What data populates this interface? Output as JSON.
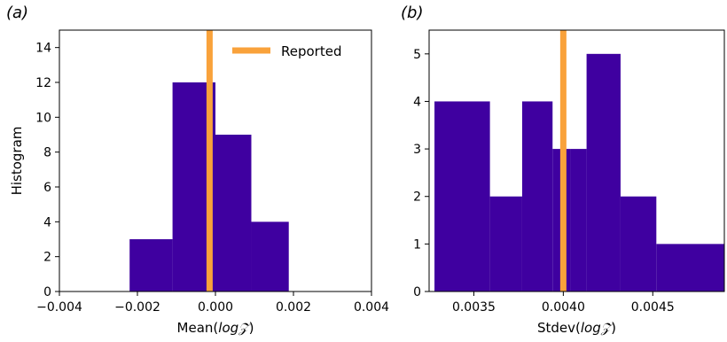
{
  "chart_data": [
    {
      "type": "histogram",
      "panel_label": "(a)",
      "xlabel": "Mean(logℤ)",
      "xlabel_main": "Mean(",
      "xlabel_math": "log𝒵",
      "xlabel_close": ")",
      "ylabel": "Histogram",
      "xlim": [
        -0.004,
        0.004
      ],
      "ylim": [
        0,
        15
      ],
      "xticks": [
        -0.004,
        -0.002,
        0.0,
        0.002,
        0.004
      ],
      "xtick_labels": [
        "−0.004",
        "−0.002",
        "0.000",
        "0.002",
        "0.004"
      ],
      "yticks": [
        0,
        2,
        4,
        6,
        8,
        10,
        12,
        14
      ],
      "ytick_labels": [
        "0",
        "2",
        "4",
        "6",
        "8",
        "10",
        "12",
        "14"
      ],
      "bins": [
        -0.0042,
        -0.0022,
        -0.0011,
        0.0,
        0.00092,
        0.00188
      ],
      "counts": [
        0,
        3,
        12,
        9,
        4
      ],
      "reported": -0.00015,
      "legend": {
        "label": "Reported",
        "placement": "top-right"
      },
      "bar_color": "#3f00a0",
      "reported_color": "#f9a23b"
    },
    {
      "type": "histogram",
      "panel_label": "(b)",
      "xlabel": "Stdev(logℤ)",
      "xlabel_main": "Stdev(",
      "xlabel_math": "log𝒵",
      "xlabel_close": ")",
      "ylabel": "",
      "xlim": [
        0.00325,
        0.0049
      ],
      "ylim": [
        0,
        5.5
      ],
      "xticks": [
        0.0035,
        0.004,
        0.0045
      ],
      "xtick_labels": [
        "0.0035",
        "0.0040",
        "0.0045"
      ],
      "yticks": [
        0,
        1,
        2,
        3,
        4,
        5
      ],
      "ytick_labels": [
        "0",
        "1",
        "2",
        "3",
        "4",
        "5"
      ],
      "bins": [
        0.00328,
        0.00359,
        0.00377,
        0.00394,
        0.00404,
        0.00413,
        0.00432,
        0.00452,
        0.0049
      ],
      "counts": [
        4,
        2,
        4,
        3,
        3,
        5,
        2,
        1
      ],
      "reported": 0.004,
      "bar_color": "#3f00a0",
      "reported_color": "#f9a23b"
    }
  ]
}
